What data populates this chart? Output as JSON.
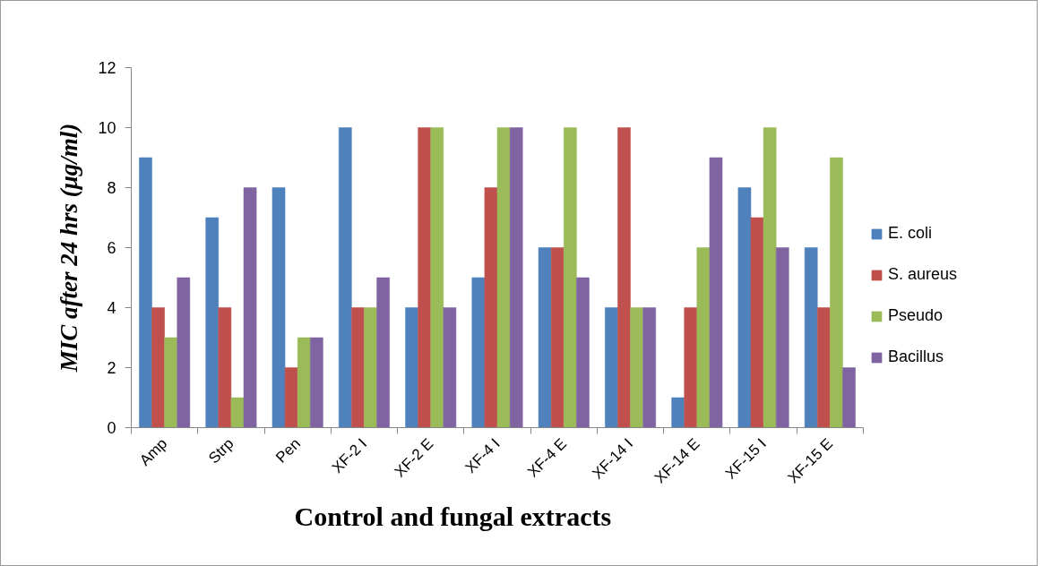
{
  "chart_data": {
    "type": "bar",
    "xlabel": "Control and fungal extracts",
    "ylabel": "MIC after 24 hrs (μg/ml)",
    "categories": [
      "Amp",
      "Strp",
      "Pen",
      "XF-2 I",
      "XF-2 E",
      "XF-4 I",
      "XF-4 E",
      "XF-14 I",
      "XF-14 E",
      "XF-15 I",
      "XF-15 E"
    ],
    "series": [
      {
        "name": "E. coli",
        "color": "#4f81bd",
        "values": [
          9,
          7,
          8,
          10,
          4,
          5,
          6,
          4,
          1,
          8,
          6
        ]
      },
      {
        "name": "S. aureus",
        "color": "#c0504d",
        "values": [
          4,
          4,
          2,
          4,
          10,
          8,
          6,
          10,
          4,
          7,
          4
        ]
      },
      {
        "name": "Pseudo",
        "color": "#9bbb59",
        "values": [
          3,
          1,
          3,
          4,
          10,
          10,
          10,
          4,
          6,
          10,
          9
        ]
      },
      {
        "name": "Bacillus",
        "color": "#8064a2",
        "values": [
          5,
          8,
          3,
          5,
          4,
          10,
          5,
          4,
          9,
          6,
          2
        ]
      }
    ],
    "ylim": [
      0,
      12
    ],
    "yticks": [
      0,
      2,
      4,
      6,
      8,
      10,
      12
    ],
    "grid": false,
    "legend": "right"
  }
}
